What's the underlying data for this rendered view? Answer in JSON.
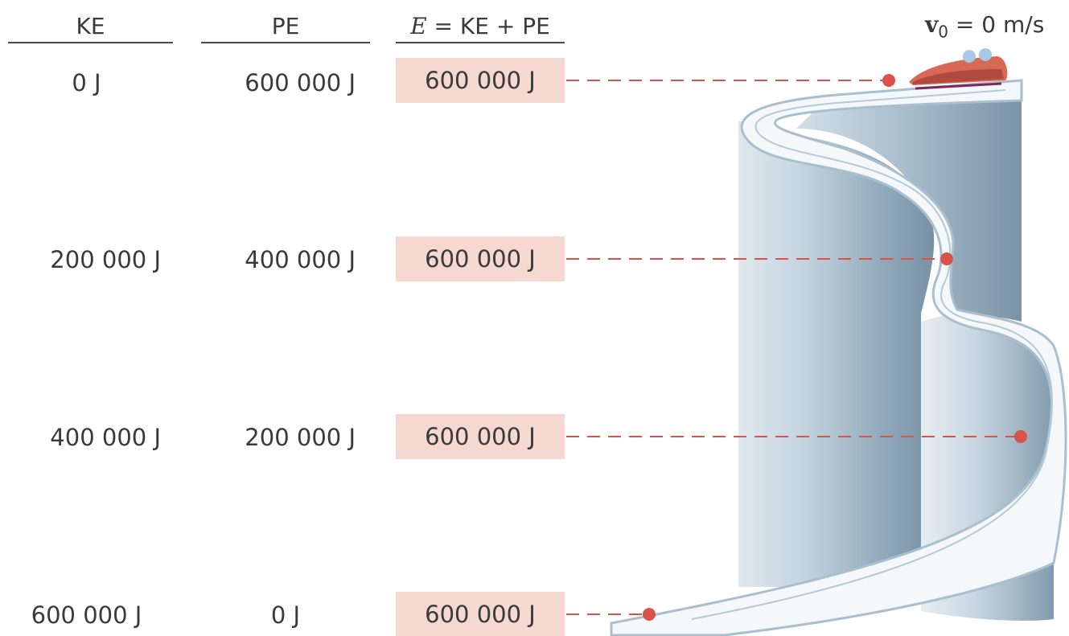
{
  "headers": {
    "ke": "KE",
    "pe": "PE",
    "total_var": "E",
    "total_rest": " = KE + PE"
  },
  "initial_velocity": {
    "symbol": "v",
    "subscript": "0",
    "rest": " = 0 m/s"
  },
  "rows": [
    {
      "ke": "0 J",
      "pe": "600 000 J",
      "total": "600 000 J"
    },
    {
      "ke": "200 000 J",
      "pe": "400 000 J",
      "total": "600 000 J"
    },
    {
      "ke": "400 000 J",
      "pe": "200 000 J",
      "total": "600 000 J"
    },
    {
      "ke": "600 000 J",
      "pe": "0 J",
      "total": "600 000 J"
    }
  ],
  "colors": {
    "marker": "#d9534a",
    "highlight": "#f5d9d0",
    "track": "#9fb4c4",
    "track_light": "#dde6ed"
  },
  "icons": [
    "bobsled-icon",
    "position-marker"
  ]
}
